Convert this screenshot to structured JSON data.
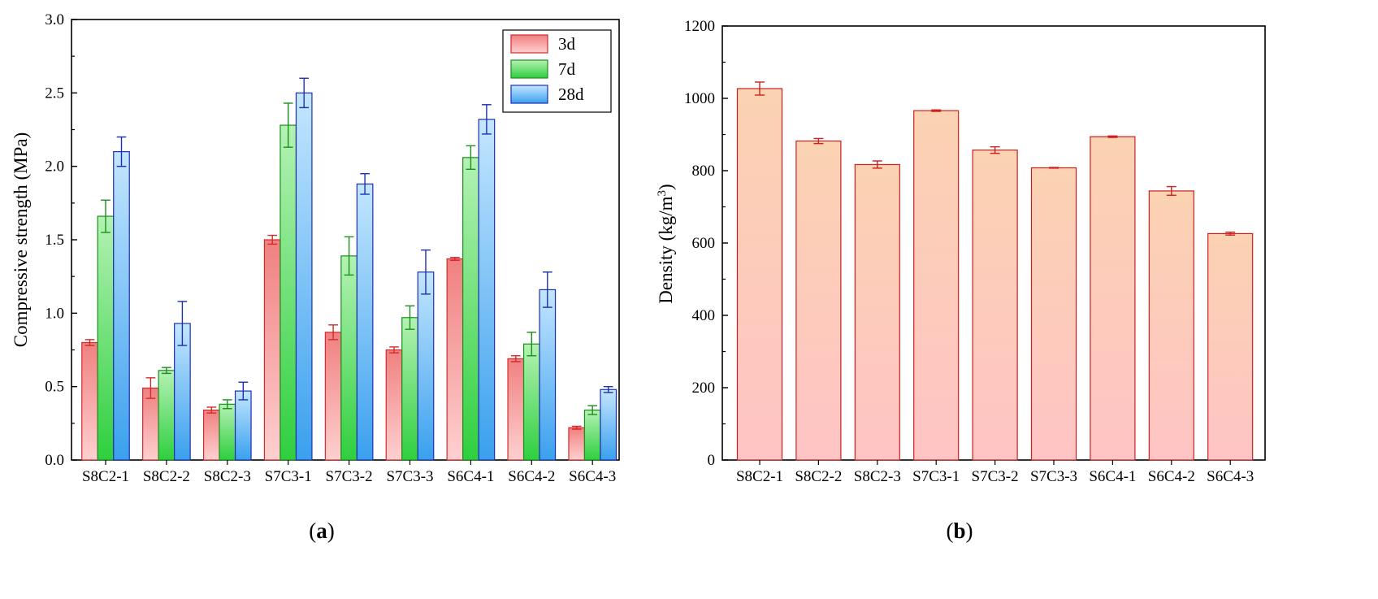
{
  "chart_data": [
    {
      "id": "a",
      "type": "bar",
      "panel_label": {
        "open": "(",
        "letter": "a",
        "close": ")"
      },
      "ylabel": "Compressive strength (MPa)",
      "xlabel": "",
      "ylim": [
        0,
        3.0
      ],
      "yticks": [
        0.0,
        0.5,
        1.0,
        1.5,
        2.0,
        2.5,
        3.0
      ],
      "ytick_labels": [
        "0.0",
        "0.5",
        "1.0",
        "1.5",
        "2.0",
        "2.5",
        "3.0"
      ],
      "categories": [
        "S8C2-1",
        "S8C2-2",
        "S8C2-3",
        "S7C3-1",
        "S7C3-2",
        "S7C3-3",
        "S6C4-1",
        "S6C4-2",
        "S6C4-3"
      ],
      "legend_position": "top-right",
      "series": [
        {
          "name": "3d",
          "fill_top": "#f08080",
          "fill_bottom": "#ffd0d0",
          "stroke": "#d42a2a",
          "err_color": "#d42a2a",
          "values": [
            0.8,
            0.49,
            0.34,
            1.5,
            0.87,
            0.75,
            1.37,
            0.69,
            0.22
          ],
          "errors": [
            0.02,
            0.07,
            0.02,
            0.03,
            0.05,
            0.02,
            0.01,
            0.02,
            0.01
          ]
        },
        {
          "name": "7d",
          "fill_top": "#b4f2b4",
          "fill_bottom": "#2fcf3f",
          "stroke": "#1b8f1b",
          "err_color": "#1b8f1b",
          "values": [
            1.66,
            0.61,
            0.38,
            2.28,
            1.39,
            0.97,
            2.06,
            0.79,
            0.34
          ],
          "errors": [
            0.11,
            0.02,
            0.03,
            0.15,
            0.13,
            0.08,
            0.08,
            0.08,
            0.03
          ]
        },
        {
          "name": "28d",
          "fill_top": "#c4e6ff",
          "fill_bottom": "#3aa0ee",
          "stroke": "#1c2fb0",
          "err_color": "#1c2fb0",
          "values": [
            2.1,
            0.93,
            0.47,
            2.5,
            1.88,
            1.28,
            2.32,
            1.16,
            0.48
          ],
          "errors": [
            0.1,
            0.15,
            0.06,
            0.1,
            0.07,
            0.15,
            0.1,
            0.12,
            0.02
          ]
        }
      ]
    },
    {
      "id": "b",
      "type": "bar",
      "panel_label": {
        "open": "(",
        "letter": "b",
        "close": ")"
      },
      "ylabel": "Density (kg/m",
      "ylabel_superscript": "3",
      "ylabel_close": ")",
      "xlabel": "",
      "ylim": [
        0,
        1200
      ],
      "yticks": [
        0,
        200,
        400,
        600,
        800,
        1000,
        1200
      ],
      "ytick_labels": [
        "0",
        "200",
        "400",
        "600",
        "800",
        "1000",
        "1200"
      ],
      "categories": [
        "S8C2-1",
        "S8C2-2",
        "S8C2-3",
        "S7C3-1",
        "S7C3-2",
        "S7C3-3",
        "S6C4-1",
        "S6C4-2",
        "S6C4-3"
      ],
      "series": [
        {
          "name": "Density",
          "fill_top": "#fbd2b2",
          "fill_bottom": "#ffc4c4",
          "stroke": "#cc2020",
          "err_color": "#cc2020",
          "values": [
            1027,
            882,
            817,
            966,
            857,
            808,
            894,
            744,
            626
          ],
          "errors": [
            18,
            7,
            10,
            2,
            9,
            1,
            2,
            12,
            4
          ]
        }
      ]
    }
  ]
}
